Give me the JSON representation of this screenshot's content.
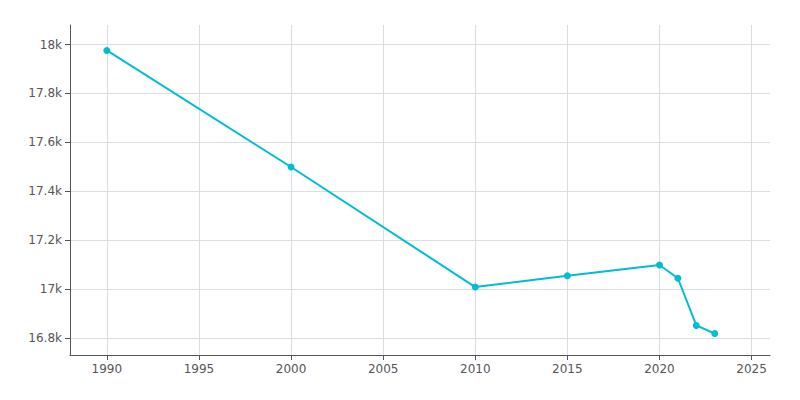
{
  "chart_data": {
    "type": "line",
    "x": [
      1990,
      2000,
      2010,
      2015,
      2020,
      2021,
      2022,
      2023
    ],
    "values": [
      17976,
      17499,
      17008,
      17054,
      17098,
      17044,
      16851,
      16818
    ],
    "color": "#00bcd4",
    "marker": "circle",
    "xlim": [
      1988,
      2026
    ],
    "xticks": [
      1990,
      1995,
      2000,
      2005,
      2010,
      2015,
      2020,
      2025
    ],
    "ylim": [
      16730,
      18080
    ],
    "yticks": [
      {
        "value": 16800,
        "label": "16.8k"
      },
      {
        "value": 17000,
        "label": "17k"
      },
      {
        "value": 17200,
        "label": "17.2k"
      },
      {
        "value": 17400,
        "label": "17.4k"
      },
      {
        "value": 17600,
        "label": "17.6k"
      },
      {
        "value": 17800,
        "label": "17.8k"
      },
      {
        "value": 18000,
        "label": "18k"
      }
    ],
    "grid": true
  }
}
